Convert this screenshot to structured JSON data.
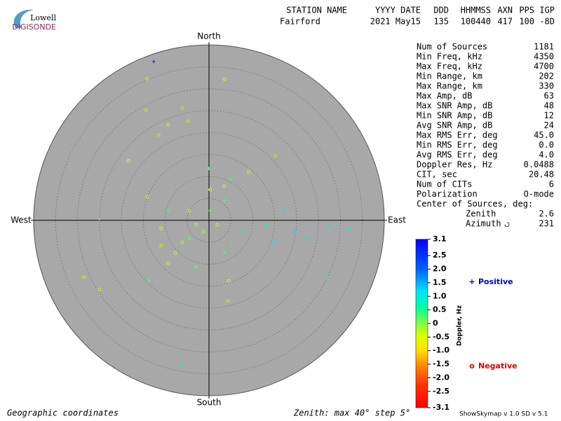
{
  "logo": {
    "top": "Lowell",
    "bottom": "DIGISONDE"
  },
  "header": {
    "labels": [
      "STATION NAME",
      "YYYY DATE",
      "DDD",
      "HHMMSS",
      "AXN",
      "PPS",
      "IGP"
    ],
    "values": [
      "Fairford",
      "2021 May15",
      "135",
      "100440",
      "417",
      "100",
      "-8D"
    ]
  },
  "stats": {
    "rows": [
      {
        "label": "Num of Sources",
        "value": "1181"
      },
      {
        "label": "Min Freq, kHz",
        "value": "4350"
      },
      {
        "label": "Max Freq, kHz",
        "value": "4700"
      },
      {
        "label": "Min Range, km",
        "value": "202"
      },
      {
        "label": "Max Range, km",
        "value": "330"
      },
      {
        "label": "Max Amp, dB",
        "value": "63"
      },
      {
        "label": "Max SNR Amp, dB",
        "value": "48"
      },
      {
        "label": "Min SNR Amp, dB",
        "value": "12"
      },
      {
        "label": "Avg SNR Amp, dB",
        "value": "24"
      },
      {
        "label": "Max RMS Err, deg",
        "value": "45.0"
      },
      {
        "label": "Min RMS Err, deg",
        "value": "0.0"
      },
      {
        "label": "Avg RMS Err, deg",
        "value": "4.0"
      },
      {
        "label": "Doppler Res, Hz",
        "value": "0.0488"
      },
      {
        "label": "CIT, sec",
        "value": "20.48"
      },
      {
        "label": "Num of CITs",
        "value": "6"
      },
      {
        "label": "Polarization",
        "value": "O-mode"
      }
    ],
    "center_title": "Center of Sources, deg:",
    "center": [
      {
        "label": "Zenith",
        "value": "2.6"
      },
      {
        "label": "Azimuth",
        "value": "231"
      }
    ]
  },
  "chart_data": {
    "type": "skymap",
    "directions": {
      "north": "North",
      "south": "South",
      "east": "East",
      "west": "West"
    },
    "xlim": [
      -40,
      40
    ],
    "ylim": [
      -40,
      40
    ],
    "rings": [
      5,
      10,
      15,
      20,
      25,
      30,
      35,
      40
    ],
    "background": "#a8a8a8",
    "series": [
      {
        "name": "Positive",
        "marker": "+",
        "color": "#0000cc",
        "x": [
          -12.6,
          0,
          17.1,
          19.5,
          27.5,
          32.3,
          27.0,
          -6.4,
          -25,
          8.3,
          13.1,
          0.3,
          3.5,
          -4.5,
          -9.3,
          5.1,
          22.7,
          14.7,
          -2.9,
          5.1,
          -13.8,
          3.5
        ],
        "y": [
          36.2,
          11.8,
          2.2,
          -2.6,
          -1.0,
          -1.9,
          -13.0,
          -33.3,
          0.2,
          -2.6,
          -1.0,
          2.2,
          4.6,
          -4.2,
          2.2,
          -5.8,
          -4.2,
          -5.0,
          -10.6,
          9.4,
          -13.8,
          -7.4
        ],
        "doppler": [
          2.5,
          0.3,
          1.0,
          1.2,
          1.0,
          1.0,
          0.5,
          0.5,
          0.3,
          0.5,
          0.8,
          0.2,
          0.3,
          0.2,
          0.3,
          0.4,
          1.0,
          1.1,
          0.2,
          0.3,
          0.3,
          0.3
        ]
      },
      {
        "name": "Negative",
        "marker": "o",
        "color": "#dd0000",
        "x": [
          -14.2,
          -14.4,
          -6.1,
          -9.3,
          -4.8,
          -11.5,
          3.5,
          15.2,
          -18.4,
          -28.5,
          -25,
          4.5,
          4.3,
          -1.3,
          -2.9,
          -6.1,
          1.9,
          -7.7,
          -9.3,
          -14.1,
          0.3,
          3.5,
          9.1,
          -10.9,
          -4.5,
          -10.9
        ],
        "y": [
          32.3,
          25.1,
          25.6,
          21.8,
          22.6,
          19.5,
          32.2,
          14.7,
          13.6,
          -13.0,
          -15.8,
          -13.8,
          -18.4,
          -2.6,
          -1.0,
          -5.0,
          -1.0,
          -7.4,
          -9.8,
          5.4,
          7.0,
          7.8,
          11.0,
          -1.8,
          2.2,
          -5.8
        ],
        "doppler": [
          -0.3,
          -0.3,
          -0.2,
          -0.3,
          -0.3,
          -0.2,
          -0.3,
          -0.2,
          -0.3,
          -0.3,
          -0.3,
          -0.3,
          -0.2,
          -0.2,
          -0.3,
          -0.3,
          -0.2,
          -0.3,
          -0.3,
          -0.2,
          -0.3,
          -0.2,
          -0.3,
          -0.3,
          -0.2,
          -0.3
        ]
      }
    ],
    "colorbar": {
      "label": "Doppler, Hz",
      "clim": [
        -3.1,
        3.1
      ],
      "ticks": [
        3.1,
        2.5,
        {
          "value": 2,
          "label": "2.0"
        },
        1.5,
        {
          "value": 1,
          "label": "1.0"
        },
        0.5,
        0,
        -0.5,
        {
          "value": -1,
          "label": "-1.0"
        },
        -1.5,
        {
          "value": -2,
          "label": "-2.0"
        },
        -2.5,
        -3.1
      ],
      "colormap": [
        {
          "value": 3.1,
          "color": "#0000ff"
        },
        {
          "value": 2.0,
          "color": "#0060ff"
        },
        {
          "value": 1.2,
          "color": "#00e0ff"
        },
        {
          "value": 0.6,
          "color": "#00ffa0"
        },
        {
          "value": 0,
          "color": "#80ff40"
        },
        {
          "value": -0.5,
          "color": "#e0ff00"
        },
        {
          "value": -1.0,
          "color": "#ffe000"
        },
        {
          "value": -1.6,
          "color": "#ff8000"
        },
        {
          "value": -2.3,
          "color": "#ff3000"
        },
        {
          "value": -3.1,
          "color": "#ff0000"
        }
      ]
    }
  },
  "footer": {
    "coords": "Geographic coordinates",
    "zenith": "Zenith: max 40°  step 5°",
    "version": "ShowSkymap v 1.0   SD v 5.1"
  }
}
